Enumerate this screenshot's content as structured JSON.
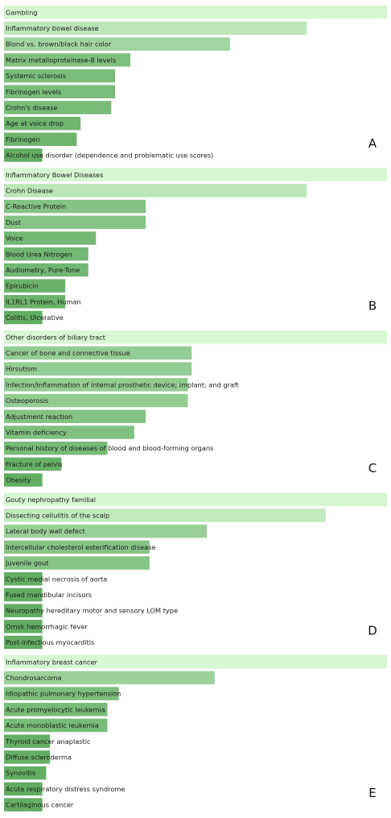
{
  "chart_data": [
    {
      "type": "bar",
      "orientation": "horizontal",
      "panel": "A",
      "categories": [
        "Gambling",
        "Inflammatory bowel disease",
        "Blond vs. brown/black hair color",
        "Matrix metalloproteinase-8 levels",
        "Systemic sclerosis",
        "Fibrinogen levels",
        "Crohn's disease",
        "Age at voice drop",
        "Fibrinogen",
        "Alcohol use disorder (dependence and problematic use scores)"
      ],
      "values": [
        1.0,
        0.79,
        0.59,
        0.33,
        0.29,
        0.29,
        0.28,
        0.2,
        0.19,
        0.1
      ],
      "xlim": [
        0,
        1
      ]
    },
    {
      "type": "bar",
      "orientation": "horizontal",
      "panel": "B",
      "categories": [
        "Inflammatory Bowel Diseases",
        "Crohn Disease",
        "C-Reactive Protein",
        "Dust",
        "Voice",
        "Blood Urea Nitrogen",
        "Audiometry, Pure-Tone",
        "Epirubicin",
        "IL1RL1 Protein, Human",
        "Colitis, Ulcerative"
      ],
      "values": [
        1.0,
        0.79,
        0.37,
        0.37,
        0.24,
        0.22,
        0.22,
        0.16,
        0.16,
        0.1
      ],
      "xlim": [
        0,
        1
      ]
    },
    {
      "type": "bar",
      "orientation": "horizontal",
      "panel": "C",
      "categories": [
        "Other disorders of biliary tract",
        "Cancer of bone and connective tissue",
        "Hirsutism",
        "Infection/inflammation of internal prosthetic device; implant; and graft",
        "Osteoporosis",
        "Adjustment reaction",
        "Vitamin deficiency",
        "Personal history of diseases of blood and blood-forming organs",
        "Fracture of pelvis",
        "Obesity"
      ],
      "values": [
        1.0,
        0.49,
        0.49,
        0.48,
        0.48,
        0.37,
        0.34,
        0.27,
        0.15,
        0.1
      ],
      "xlim": [
        0,
        1
      ]
    },
    {
      "type": "bar",
      "orientation": "horizontal",
      "panel": "D",
      "categories": [
        "Gouty nephropathy familial",
        "Dissecting cellulitis of the scalp",
        "Lateral body wall defect",
        "Intercellular cholesterol esterification disease",
        "Juvenile gout",
        "Cystic medial necrosis of aorta",
        "Fused mandibular incisors",
        "Neuropathy hereditary motor and sensory LOM type",
        "Omsk hemorrhagic fever",
        "Post-infectious myocarditis"
      ],
      "values": [
        1.0,
        0.84,
        0.53,
        0.38,
        0.38,
        0.1,
        0.1,
        0.1,
        0.1,
        0.1
      ],
      "xlim": [
        0,
        1
      ]
    },
    {
      "type": "bar",
      "orientation": "horizontal",
      "panel": "E",
      "categories": [
        "Inflammatory breast cancer",
        "Chondrosarcoma",
        "Idiopathic pulmonary hypertension",
        "Acute promyelocytic leukemia",
        "Acute monoblastic leukemia",
        "Thyroid cancer anaplastic",
        "Diffuse scleroderma",
        "Synovitis",
        "Acute respiratory distress syndrome",
        "Cartilaginous cancer"
      ],
      "values": [
        1.0,
        0.55,
        0.3,
        0.27,
        0.27,
        0.12,
        0.12,
        0.11,
        0.1,
        0.1
      ],
      "xlim": [
        0,
        1
      ]
    }
  ],
  "colors": {
    "bar_lightest": "#d6f7d2",
    "bar_darkest": "#62ad62",
    "panel_background": "#ffffff"
  }
}
